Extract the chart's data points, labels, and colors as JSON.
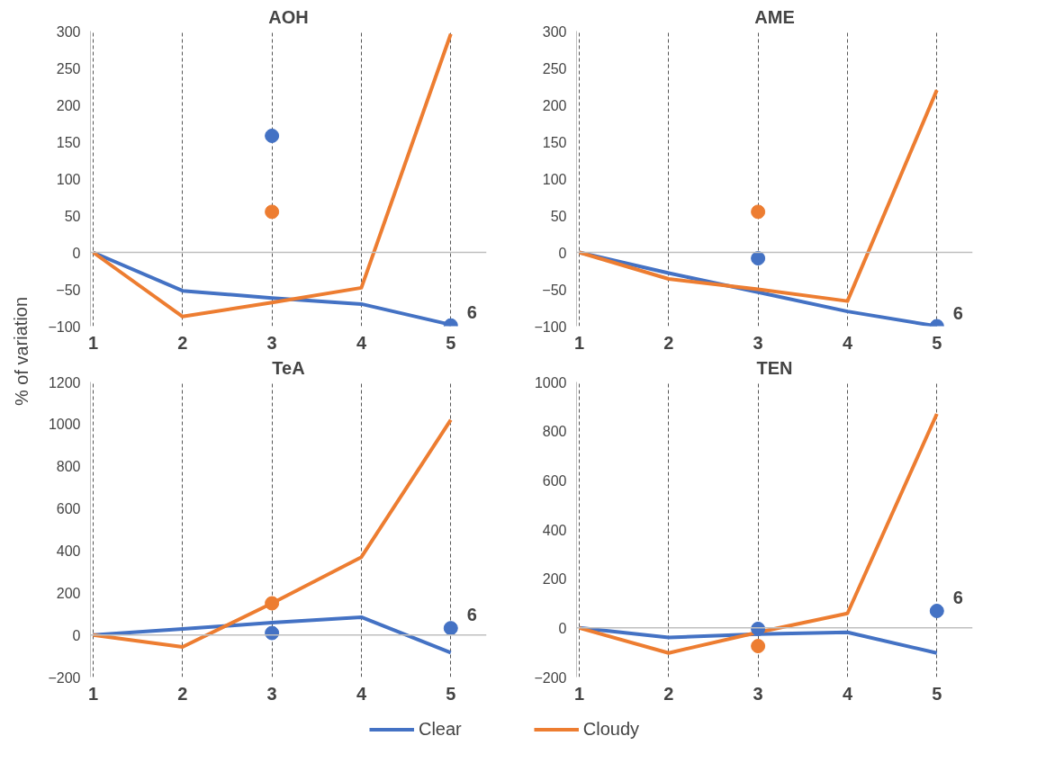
{
  "chart_data": [
    {
      "type": "line",
      "title": "AOH",
      "ylabel": "% of variation",
      "categories": [
        "1",
        "2",
        "3",
        "4",
        "5"
      ],
      "series": [
        {
          "name": "Clear",
          "color": "#4472c4",
          "values": [
            0,
            -52,
            -62,
            -70,
            -98
          ]
        },
        {
          "name": "Cloudy",
          "color": "#ed7d31",
          "values": [
            0,
            -87,
            -68,
            -48,
            296
          ]
        },
        {
          "type": "scatter",
          "color": "#4472c4",
          "x": [
            "3",
            "5"
          ],
          "values": [
            158,
            -99
          ]
        },
        {
          "type": "scatter",
          "color": "#ed7d31",
          "x": [
            "3"
          ],
          "values": [
            55
          ]
        }
      ],
      "annotations": [
        {
          "text": "6",
          "x": "5",
          "y": -99
        }
      ],
      "ylim": [
        -100,
        300
      ],
      "yticks": [
        -100,
        -50,
        0,
        50,
        100,
        150,
        200,
        250,
        300
      ],
      "grid": "x",
      "ref_lines": [
        {
          "axis": "y",
          "value": 0,
          "color": "#bfbfbf"
        }
      ],
      "legend": "bottom"
    },
    {
      "type": "line",
      "title": "AME",
      "categories": [
        "1",
        "2",
        "3",
        "4",
        "5"
      ],
      "series": [
        {
          "color": "#4472c4",
          "values": [
            0,
            -28,
            -54,
            -80,
            -100
          ]
        },
        {
          "color": "#ed7d31",
          "values": [
            0,
            -36,
            -50,
            -66,
            220
          ]
        },
        {
          "type": "scatter",
          "color": "#4472c4",
          "x": [
            "3",
            "5"
          ],
          "values": [
            -8,
            -100
          ]
        },
        {
          "type": "scatter",
          "color": "#ed7d31",
          "x": [
            "3"
          ],
          "values": [
            55
          ]
        }
      ],
      "annotations": [
        {
          "text": "6",
          "x": "5",
          "y": -100
        }
      ],
      "ylim": [
        -100,
        300
      ],
      "yticks": [
        -100,
        -50,
        0,
        50,
        100,
        150,
        200,
        250,
        300
      ],
      "grid": "x",
      "ref_lines": [
        {
          "axis": "y",
          "value": 0,
          "color": "#bfbfbf"
        }
      ]
    },
    {
      "type": "line",
      "title": "TeA",
      "categories": [
        "1",
        "2",
        "3",
        "4",
        "5"
      ],
      "series": [
        {
          "color": "#4472c4",
          "values": [
            0,
            28,
            58,
            84,
            -84
          ]
        },
        {
          "color": "#ed7d31",
          "values": [
            0,
            -57,
            150,
            369,
            1020
          ]
        },
        {
          "type": "scatter",
          "color": "#4472c4",
          "x": [
            "3",
            "5"
          ],
          "values": [
            9,
            32
          ]
        },
        {
          "type": "scatter",
          "color": "#ed7d31",
          "x": [
            "3"
          ],
          "values": [
            150
          ]
        }
      ],
      "annotations": [
        {
          "text": "6",
          "x": "5",
          "y": 32
        }
      ],
      "ylim": [
        -200,
        1200
      ],
      "yticks": [
        -200,
        0,
        200,
        400,
        600,
        800,
        1000,
        1200
      ],
      "grid": "x",
      "ref_lines": [
        {
          "axis": "y",
          "value": 0,
          "color": "#bfbfbf"
        }
      ]
    },
    {
      "type": "line",
      "title": "TEN",
      "categories": [
        "1",
        "2",
        "3",
        "4",
        "5"
      ],
      "series": [
        {
          "color": "#4472c4",
          "values": [
            0,
            -39,
            -25,
            -18,
            -102
          ]
        },
        {
          "color": "#ed7d31",
          "values": [
            0,
            -102,
            -18,
            59,
            870
          ]
        },
        {
          "type": "scatter",
          "color": "#4472c4",
          "x": [
            "3",
            "5"
          ],
          "values": [
            -4,
            69
          ]
        },
        {
          "type": "scatter",
          "color": "#ed7d31",
          "x": [
            "3"
          ],
          "values": [
            -74
          ]
        }
      ],
      "annotations": [
        {
          "text": "6",
          "x": "5",
          "y": 69
        }
      ],
      "ylim": [
        -200,
        1000
      ],
      "yticks": [
        -200,
        0,
        200,
        400,
        600,
        800,
        1000
      ],
      "grid": "x",
      "ref_lines": [
        {
          "axis": "y",
          "value": 0,
          "color": "#bfbfbf"
        }
      ]
    }
  ]
}
